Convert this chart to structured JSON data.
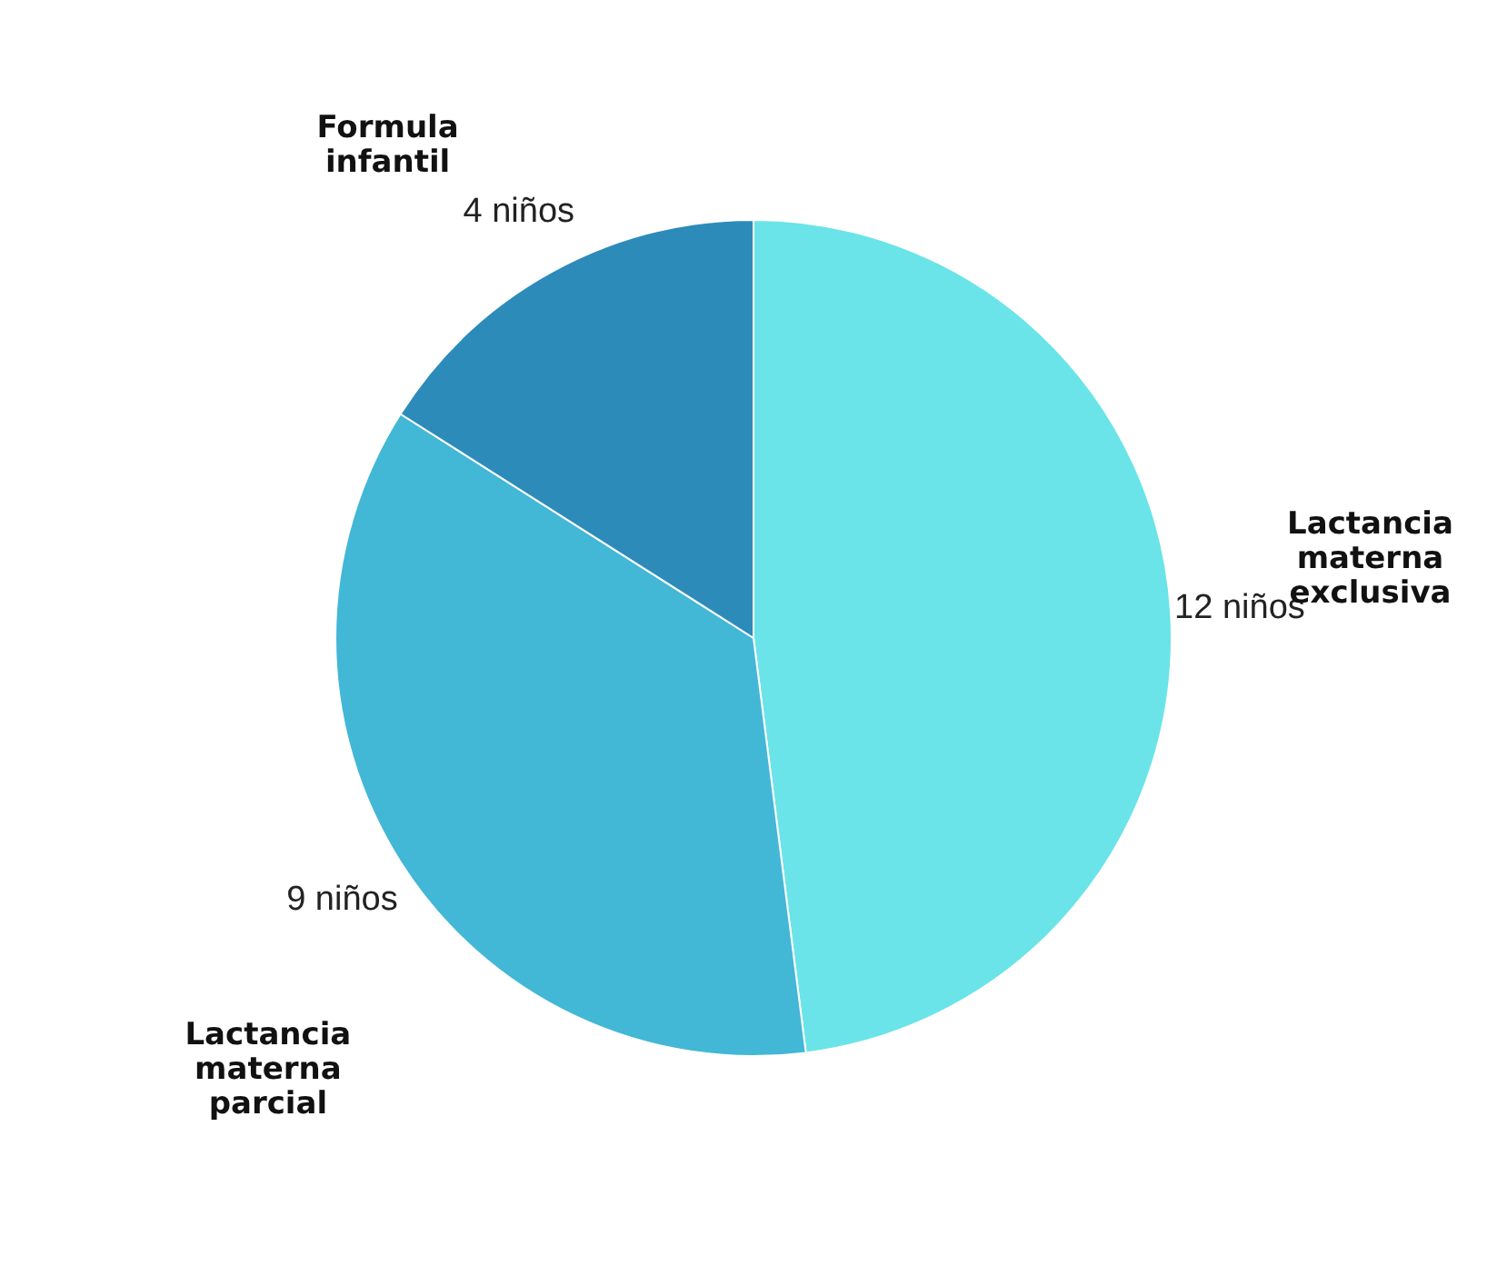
{
  "chart_data": {
    "type": "pie",
    "categories": [
      "Lactancia materna exclusiva",
      "Lactancia materna parcial",
      "Formula infantil"
    ],
    "values": [
      12,
      9,
      4
    ],
    "colors": [
      "#6ae4e8",
      "#43b7d6",
      "#2d8bba"
    ],
    "value_labels": [
      "12 niños",
      "9 niños",
      "4 niños"
    ]
  }
}
